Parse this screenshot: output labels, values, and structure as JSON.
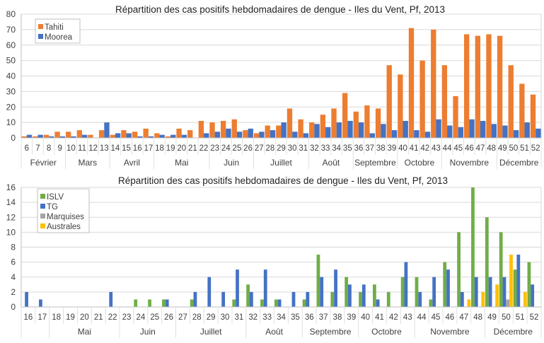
{
  "chart_data": [
    {
      "type": "bar",
      "title": "Répartition des cas positifs hebdomadaires de dengue - Iles du Vent, Pf, 2013",
      "xlabel": "",
      "ylabel": "",
      "ylim": [
        0,
        80
      ],
      "yticks": [
        0,
        10,
        20,
        30,
        40,
        50,
        60,
        70,
        80
      ],
      "grid": true,
      "legend_position": "top-left",
      "categories": [
        6,
        7,
        8,
        9,
        10,
        11,
        12,
        13,
        14,
        15,
        16,
        17,
        18,
        19,
        20,
        21,
        22,
        23,
        24,
        25,
        26,
        27,
        28,
        29,
        30,
        31,
        32,
        33,
        34,
        35,
        36,
        37,
        38,
        39,
        40,
        41,
        42,
        43,
        44,
        45,
        46,
        47,
        48,
        49,
        50,
        51,
        52
      ],
      "months": [
        {
          "label": "Février",
          "from": 6,
          "to": 9
        },
        {
          "label": "Mars",
          "from": 10,
          "to": 13
        },
        {
          "label": "Avril",
          "from": 14,
          "to": 17
        },
        {
          "label": "Mai",
          "from": 18,
          "to": 22
        },
        {
          "label": "Juin",
          "from": 23,
          "to": 26
        },
        {
          "label": "Juillet",
          "from": 27,
          "to": 31
        },
        {
          "label": "Août",
          "from": 32,
          "to": 35
        },
        {
          "label": "Septembre",
          "from": 36,
          "to": 39
        },
        {
          "label": "Octobre",
          "from": 40,
          "to": 43
        },
        {
          "label": "Novembre",
          "from": 44,
          "to": 48
        },
        {
          "label": "Décembre",
          "from": 49,
          "to": 52
        }
      ],
      "series": [
        {
          "name": "Tahiti",
          "color": "#ED7D31",
          "values": [
            1,
            1,
            2,
            4,
            4,
            5,
            2,
            5,
            2,
            5,
            4,
            6,
            3,
            1,
            6,
            5,
            11,
            10,
            11,
            12,
            5,
            3,
            8,
            8,
            19,
            12,
            10,
            15,
            19,
            29,
            17,
            21,
            19,
            47,
            41,
            71,
            50,
            70,
            47,
            27,
            67,
            66,
            67,
            66,
            47,
            35,
            28
          ]
        },
        {
          "name": "Moorea",
          "color": "#4472C4",
          "values": [
            2,
            2,
            1,
            1,
            1,
            2,
            0,
            10,
            3,
            3,
            1,
            1,
            2,
            2,
            2,
            0,
            3,
            4,
            6,
            4,
            6,
            4,
            5,
            10,
            4,
            3,
            9,
            7,
            10,
            11,
            10,
            3,
            9,
            5,
            11,
            5,
            4,
            12,
            8,
            7,
            12,
            11,
            9,
            8,
            5,
            10,
            6
          ]
        }
      ]
    },
    {
      "type": "bar",
      "title": "Répartition des cas positifs hebdomadaires de dengue - Iles du Vent, Pf, 2013",
      "xlabel": "",
      "ylabel": "",
      "ylim": [
        0,
        16
      ],
      "yticks": [
        0,
        2,
        4,
        6,
        8,
        10,
        12,
        14,
        16
      ],
      "grid": true,
      "legend_position": "top-left",
      "categories": [
        16,
        17,
        18,
        19,
        20,
        21,
        22,
        23,
        24,
        25,
        26,
        27,
        28,
        29,
        30,
        31,
        32,
        33,
        34,
        35,
        36,
        37,
        38,
        39,
        40,
        41,
        42,
        43,
        44,
        45,
        46,
        47,
        48,
        49,
        50,
        51,
        52
      ],
      "months": [
        {
          "label": "",
          "from": 16,
          "to": 17
        },
        {
          "label": "Mai",
          "from": 18,
          "to": 22
        },
        {
          "label": "Juin",
          "from": 23,
          "to": 26
        },
        {
          "label": "Juillet",
          "from": 27,
          "to": 31
        },
        {
          "label": "Août",
          "from": 32,
          "to": 35
        },
        {
          "label": "Septembre",
          "from": 36,
          "to": 39
        },
        {
          "label": "Octobre",
          "from": 40,
          "to": 43
        },
        {
          "label": "Novembre",
          "from": 44,
          "to": 48
        },
        {
          "label": "Décembre",
          "from": 49,
          "to": 52
        }
      ],
      "series": [
        {
          "name": "ISLV",
          "color": "#70AD47",
          "values": [
            0,
            0,
            0,
            0,
            0,
            0,
            0,
            0,
            1,
            1,
            1,
            0,
            1,
            0,
            0,
            1,
            3,
            1,
            1,
            0,
            1,
            7,
            2,
            4,
            2,
            3,
            2,
            4,
            4,
            1,
            6,
            10,
            16,
            12,
            10,
            5,
            6
          ]
        },
        {
          "name": "TG",
          "color": "#4472C4",
          "values": [
            2,
            1,
            0,
            0,
            0,
            0,
            2,
            0,
            0,
            0,
            1,
            0,
            2,
            4,
            2,
            5,
            2,
            5,
            1,
            2,
            2,
            4,
            5,
            3,
            3,
            1,
            0,
            6,
            2,
            4,
            5,
            2,
            4,
            4,
            4,
            7,
            3
          ]
        },
        {
          "name": "Marquises",
          "color": "#A5A5A5",
          "values": [
            0,
            0,
            0,
            0,
            0,
            0,
            0,
            0,
            0,
            0,
            0,
            0,
            0,
            0,
            0,
            0,
            0,
            0,
            0,
            0,
            0,
            0,
            0,
            0,
            0,
            0,
            0,
            0,
            0,
            0,
            0,
            0,
            0,
            0,
            1,
            0,
            0
          ]
        },
        {
          "name": "Australes",
          "color": "#FFC000",
          "values": [
            0,
            0,
            0,
            0,
            0,
            0,
            0,
            0,
            0,
            0,
            0,
            0,
            0,
            0,
            0,
            0,
            0,
            0,
            0,
            0,
            0,
            0,
            0,
            0,
            0,
            0,
            0,
            0,
            0,
            0,
            0,
            1,
            2,
            3,
            7,
            2,
            0
          ]
        }
      ]
    }
  ]
}
